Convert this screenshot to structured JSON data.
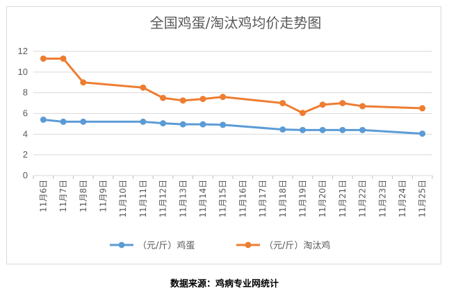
{
  "chart_data": {
    "type": "line",
    "title": "全国鸡蛋/淘汰鸡均价走势图",
    "categories": [
      "11月6日",
      "11月7日",
      "11月8日",
      "11月9日",
      "11月10日",
      "11月11日",
      "11月12日",
      "11月13日",
      "11月14日",
      "11月15日",
      "11月16日",
      "11月17日",
      "11月18日",
      "11月19日",
      "11月20日",
      "11月21日",
      "11月22日",
      "11月23日",
      "11月24日",
      "11月25日"
    ],
    "ylim": [
      0,
      12
    ],
    "yticks": [
      0,
      2,
      4,
      6,
      8,
      10,
      12
    ],
    "grid": true,
    "legend_position": "bottom",
    "series": [
      {
        "name": "（元/斤）鸡蛋",
        "color": "#5b9bd5",
        "values": [
          5.4,
          5.2,
          5.2,
          null,
          null,
          5.2,
          5.05,
          4.95,
          4.95,
          4.9,
          null,
          null,
          4.45,
          4.4,
          4.4,
          4.4,
          4.4,
          null,
          null,
          4.05
        ]
      },
      {
        "name": "（元/斤）淘汰鸡",
        "color": "#ed7d31",
        "values": [
          11.3,
          11.3,
          9.0,
          null,
          null,
          8.5,
          7.5,
          7.25,
          7.4,
          7.6,
          null,
          null,
          7.0,
          6.05,
          6.85,
          7.0,
          6.7,
          null,
          null,
          6.5
        ]
      }
    ]
  },
  "source": "数据来源：鸡病专业网统计"
}
